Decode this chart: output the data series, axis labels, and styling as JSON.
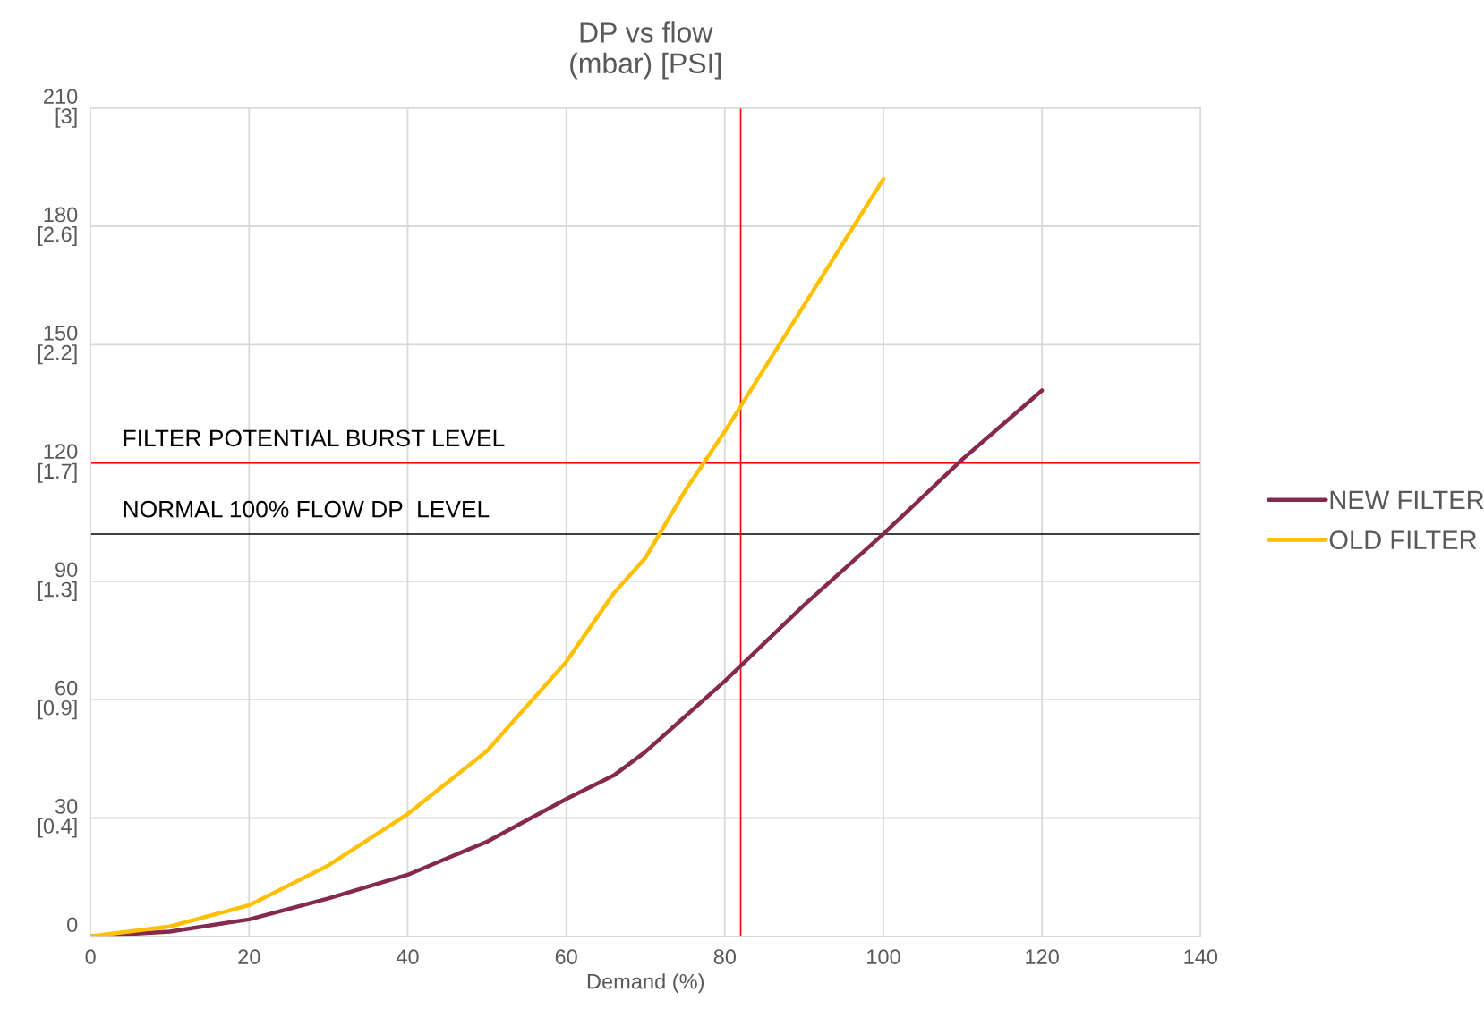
{
  "chart_data": {
    "type": "line",
    "title": "DP vs flow\n(mbar) [PSI]",
    "xlabel": "Demand (%)",
    "xlim": [
      0,
      140
    ],
    "xticks": [
      0,
      20,
      40,
      60,
      80,
      100,
      120,
      140
    ],
    "ylim": [
      0,
      210
    ],
    "yticks": [
      0,
      30,
      60,
      90,
      120,
      150,
      180,
      210
    ],
    "y2lim": [
      0,
      3.046
    ],
    "y2ticks": [
      {
        "value": 0.435,
        "label": "[0.4]"
      },
      {
        "value": 0.87,
        "label": "[0.9]"
      },
      {
        "value": 1.305,
        "label": "[1.3]"
      },
      {
        "value": 1.74,
        "label": "[1.7]"
      },
      {
        "value": 2.176,
        "label": "[2.2]"
      },
      {
        "value": 2.611,
        "label": "[2.6]"
      },
      {
        "value": 3.046,
        "label": "[3]"
      }
    ],
    "grid": true,
    "legend": "right",
    "marker": "none",
    "line_style": "solid",
    "series": [
      {
        "name": "NEW FILTER",
        "color": "#86294f",
        "x": [
          0,
          10,
          20,
          30,
          40,
          50,
          60,
          66,
          70,
          80,
          90,
          100,
          110,
          120
        ],
        "values": [
          0,
          1.2,
          4.3,
          9.6,
          15.6,
          24,
          34.8,
          40.8,
          46.8,
          64.7,
          84,
          102,
          121,
          138.4
        ]
      },
      {
        "name": "OLD FILTER",
        "color": "#ffc000",
        "x": [
          0,
          10,
          20,
          30,
          40,
          50,
          60,
          66,
          70,
          75,
          80,
          90,
          100
        ],
        "values": [
          0,
          2.5,
          7.9,
          18,
          31,
          47,
          69.6,
          87,
          96,
          113,
          128,
          160,
          192
        ]
      }
    ],
    "ref_lines": [
      {
        "axis": "y",
        "value": 120,
        "label": "FILTER POTENTIAL BURST LEVEL",
        "color": "#ff0000",
        "line_style": "solid"
      },
      {
        "axis": "y",
        "value": 102,
        "label": "NORMAL 100% FLOW DP  LEVEL",
        "color": "#000000",
        "line_style": "solid"
      },
      {
        "axis": "x",
        "value": 82,
        "color": "#ff0000",
        "line_style": "solid"
      }
    ]
  }
}
